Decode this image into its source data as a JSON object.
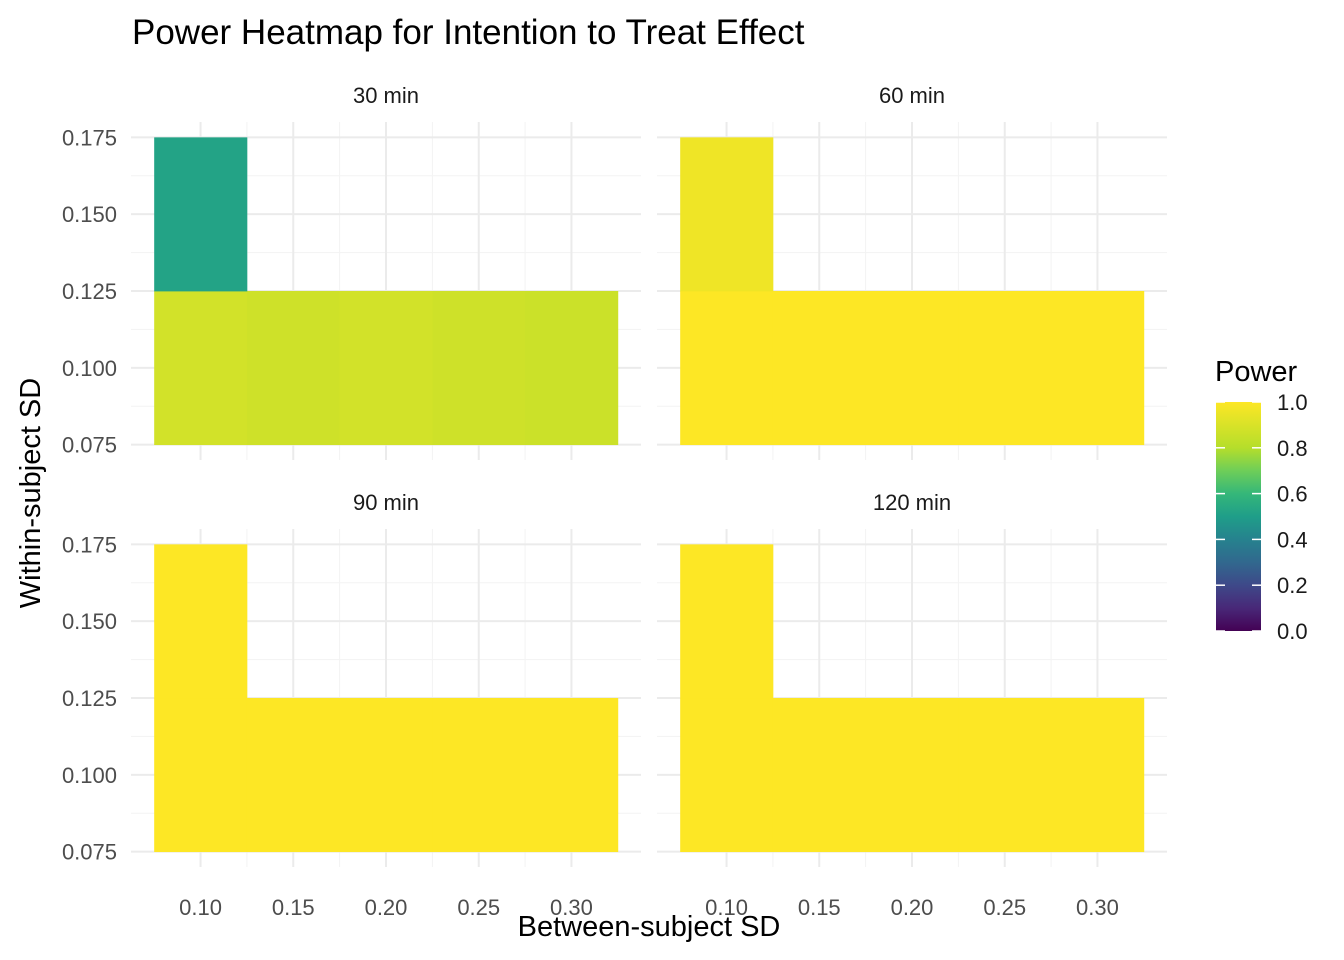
{
  "chart_data": {
    "type": "heatmap",
    "title": "Power Heatmap for Intention to Treat Effect",
    "xlabel": "Between-subject SD",
    "ylabel": "Within-subject SD",
    "x_ticks": [
      0.1,
      0.15,
      0.2,
      0.25,
      0.3
    ],
    "y_ticks": [
      0.075,
      0.1,
      0.125,
      0.15,
      0.175
    ],
    "xlim": [
      0.075,
      0.325
    ],
    "ylim": [
      0.075,
      0.175
    ],
    "legend": {
      "title": "Power",
      "ticks": [
        0.0,
        0.2,
        0.4,
        0.6,
        0.8,
        1.0
      ],
      "tick_labels": [
        "0.0",
        "0.2",
        "0.4",
        "0.6",
        "0.8",
        "1.0"
      ],
      "palette": [
        "#440154",
        "#3b528b",
        "#21918c",
        "#5ec962",
        "#fde725"
      ],
      "position": "right"
    },
    "facets": [
      {
        "label": "30 min",
        "cells": [
          {
            "x": 0.1,
            "y": 0.1,
            "power": 0.88
          },
          {
            "x": 0.15,
            "y": 0.1,
            "power": 0.87
          },
          {
            "x": 0.2,
            "y": 0.1,
            "power": 0.88
          },
          {
            "x": 0.25,
            "y": 0.1,
            "power": 0.87
          },
          {
            "x": 0.3,
            "y": 0.1,
            "power": 0.86
          },
          {
            "x": 0.1,
            "y": 0.15,
            "power": 0.52
          }
        ]
      },
      {
        "label": "60 min",
        "cells": [
          {
            "x": 0.1,
            "y": 0.1,
            "power": 1.0
          },
          {
            "x": 0.15,
            "y": 0.1,
            "power": 1.0
          },
          {
            "x": 0.2,
            "y": 0.1,
            "power": 1.0
          },
          {
            "x": 0.25,
            "y": 0.1,
            "power": 1.0
          },
          {
            "x": 0.3,
            "y": 0.1,
            "power": 1.0
          },
          {
            "x": 0.1,
            "y": 0.15,
            "power": 0.96
          }
        ]
      },
      {
        "label": "90 min",
        "cells": [
          {
            "x": 0.1,
            "y": 0.1,
            "power": 1.0
          },
          {
            "x": 0.15,
            "y": 0.1,
            "power": 1.0
          },
          {
            "x": 0.2,
            "y": 0.1,
            "power": 1.0
          },
          {
            "x": 0.25,
            "y": 0.1,
            "power": 1.0
          },
          {
            "x": 0.3,
            "y": 0.1,
            "power": 1.0
          },
          {
            "x": 0.1,
            "y": 0.15,
            "power": 1.0
          }
        ]
      },
      {
        "label": "120 min",
        "cells": [
          {
            "x": 0.1,
            "y": 0.1,
            "power": 1.0
          },
          {
            "x": 0.15,
            "y": 0.1,
            "power": 1.0
          },
          {
            "x": 0.2,
            "y": 0.1,
            "power": 1.0
          },
          {
            "x": 0.25,
            "y": 0.1,
            "power": 1.0
          },
          {
            "x": 0.3,
            "y": 0.1,
            "power": 1.0
          },
          {
            "x": 0.1,
            "y": 0.15,
            "power": 1.0
          }
        ]
      }
    ]
  }
}
